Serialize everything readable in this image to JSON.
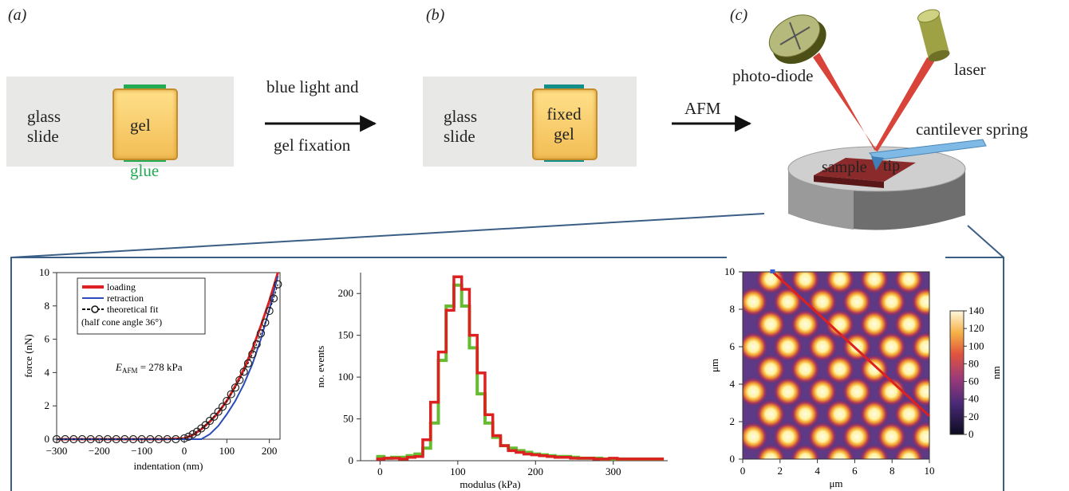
{
  "panels": {
    "a": {
      "label": "(a)",
      "slide_text": [
        "glass",
        "slide"
      ],
      "gel_label": "gel",
      "glue_label": "glue"
    },
    "arrow1": {
      "label_line1": "blue light and",
      "label_line2": "gel fixation"
    },
    "b": {
      "label": "(b)",
      "slide_text": [
        "glass",
        "slide"
      ],
      "gel_label": [
        "fixed",
        "gel"
      ]
    },
    "arrow2": {
      "label": "AFM"
    },
    "c": {
      "label": "(c)",
      "photo_diode": "photo-diode",
      "laser": "laser",
      "cantilever": "cantilever spring",
      "tip": "tip",
      "sample": "sample"
    }
  },
  "colors": {
    "slide": "#e8e8e6",
    "gel_fill": "#f5c860",
    "gel_edge": "#c68e2a",
    "glue_green": "#22aa55",
    "teal": "#138f8a",
    "red": "#dd2020",
    "blue": "#2a4bb8",
    "green": "#66bb33",
    "frame": "#3b5e86"
  },
  "chart_data": [
    {
      "type": "line",
      "xlabel": "indentation (nm)",
      "ylabel": "force (nN)",
      "xlim": [
        -300,
        225
      ],
      "ylim": [
        0,
        10
      ],
      "xticks": [
        -300,
        -200,
        -100,
        0,
        100,
        200
      ],
      "yticks": [
        0,
        2,
        4,
        6,
        8,
        10
      ],
      "annotation": {
        "prefix": "E",
        "sub": "AFM",
        "value": " = 278 kPa"
      },
      "legend": [
        "loading",
        "retraction",
        "theoretical fit",
        "(half cone angle 36°)"
      ],
      "legend_placement": "top-left",
      "series": [
        {
          "name": "loading",
          "x": [
            -300,
            -250,
            -200,
            -150,
            -100,
            -50,
            0,
            20,
            40,
            60,
            80,
            100,
            120,
            140,
            160,
            180,
            200,
            220
          ],
          "y": [
            0,
            0,
            0,
            0,
            0,
            0,
            0.05,
            0.25,
            0.6,
            1.05,
            1.6,
            2.3,
            3.2,
            4.2,
            5.4,
            6.8,
            8.3,
            10
          ]
        },
        {
          "name": "retraction",
          "x": [
            -300,
            -200,
            -100,
            0,
            40,
            60,
            80,
            100,
            120,
            140,
            160,
            180,
            200,
            220
          ],
          "y": [
            0,
            0,
            0,
            0,
            0,
            0.3,
            0.8,
            1.5,
            2.3,
            3.3,
            4.5,
            6.0,
            7.8,
            9.8
          ]
        },
        {
          "name": "theoretical fit",
          "x": [
            -300,
            -280,
            -260,
            -240,
            -220,
            -200,
            -180,
            -160,
            -140,
            -120,
            -100,
            -80,
            -60,
            -40,
            -20,
            0,
            10,
            20,
            30,
            40,
            50,
            60,
            70,
            80,
            90,
            100,
            110,
            120,
            130,
            140,
            150,
            160,
            170,
            180,
            190,
            200,
            210,
            220
          ],
          "y": [
            0,
            0,
            0,
            0,
            0,
            0,
            0,
            0,
            0,
            0,
            0,
            0,
            0,
            0,
            0,
            0.05,
            0.15,
            0.3,
            0.45,
            0.65,
            0.85,
            1.1,
            1.35,
            1.65,
            1.95,
            2.3,
            2.7,
            3.1,
            3.55,
            4.05,
            4.55,
            5.1,
            5.7,
            6.35,
            7.0,
            7.7,
            8.45,
            9.3
          ]
        }
      ]
    },
    {
      "type": "bar",
      "xlabel": "modulus (kPa)",
      "ylabel": "no. events",
      "xlim": [
        -25,
        370
      ],
      "ylim": [
        0,
        225
      ],
      "xticks": [
        0,
        100,
        200,
        300
      ],
      "yticks": [
        0,
        50,
        100,
        150,
        200
      ],
      "bin_width": 10,
      "x": [
        0,
        10,
        20,
        30,
        40,
        50,
        60,
        70,
        80,
        90,
        100,
        110,
        120,
        130,
        140,
        150,
        160,
        170,
        180,
        190,
        200,
        210,
        220,
        230,
        240,
        250,
        260,
        270,
        280,
        290,
        300,
        310,
        320,
        330,
        340,
        350,
        360
      ],
      "series": [
        {
          "name": "red",
          "values": [
            2,
            3,
            3,
            2,
            4,
            5,
            25,
            70,
            130,
            180,
            220,
            205,
            150,
            105,
            55,
            30,
            18,
            12,
            10,
            8,
            7,
            6,
            5,
            4,
            4,
            3,
            3,
            3,
            2,
            2,
            3,
            2,
            2,
            2,
            2,
            2,
            2
          ]
        },
        {
          "name": "green",
          "values": [
            5,
            3,
            4,
            4,
            6,
            8,
            15,
            45,
            120,
            185,
            210,
            185,
            135,
            80,
            45,
            28,
            18,
            15,
            12,
            10,
            8,
            7,
            6,
            5,
            5,
            4,
            3,
            3,
            3,
            2,
            2,
            2,
            2,
            2,
            2,
            2,
            2
          ]
        }
      ]
    },
    {
      "type": "heatmap",
      "xlabel": "μm",
      "ylabel": "μm",
      "xlim": [
        0,
        10
      ],
      "ylim": [
        0,
        10
      ],
      "xticks": [
        0,
        2,
        4,
        6,
        8,
        10
      ],
      "yticks": [
        0,
        2,
        4,
        6,
        8,
        10
      ],
      "colorbar": {
        "label": "nm",
        "min": 0,
        "max": 140,
        "ticks": [
          0,
          20,
          40,
          60,
          80,
          100,
          120,
          140
        ]
      },
      "line_profile": {
        "from": [
          1.6,
          10
        ],
        "to": [
          10,
          2.3
        ],
        "color": "#dd2020"
      }
    }
  ]
}
